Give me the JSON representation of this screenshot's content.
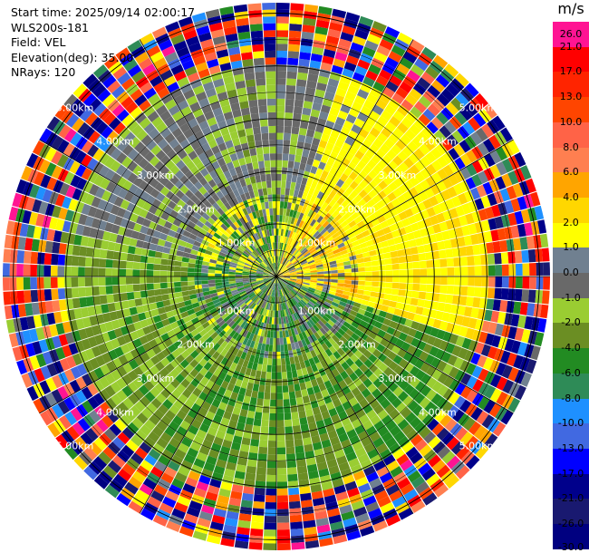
{
  "info": {
    "start_time": "Start time: 2025/09/14 02:00:17",
    "instrument": "WLS200s-181",
    "field": "Field: VEL",
    "elevation": "Elevation(deg): 35.00",
    "nrays": "NRays: 120"
  },
  "colorbar": {
    "unit": "m/s",
    "levels": [
      {
        "label": "26.0",
        "color": "#ff1493"
      },
      {
        "label": "21.0",
        "color": "#ff0000"
      },
      {
        "label": "17.0",
        "color": "#ff2400"
      },
      {
        "label": "13.0",
        "color": "#ff4500"
      },
      {
        "label": "10.0",
        "color": "#ff6347"
      },
      {
        "label": "8.0",
        "color": "#ff7f50"
      },
      {
        "label": "6.0",
        "color": "#ffa500"
      },
      {
        "label": "4.0",
        "color": "#ffd700"
      },
      {
        "label": "2.0",
        "color": "#ffff00"
      },
      {
        "label": "1.0",
        "color": "#708090"
      },
      {
        "label": "0.0",
        "color": "#696969"
      },
      {
        "label": "-1.0",
        "color": "#9acd32"
      },
      {
        "label": "-2.0",
        "color": "#6b8e23"
      },
      {
        "label": "-4.0",
        "color": "#228b22"
      },
      {
        "label": "-6.0",
        "color": "#2e8b57"
      },
      {
        "label": "-8.0",
        "color": "#1e90ff"
      },
      {
        "label": "-10.0",
        "color": "#4169e1"
      },
      {
        "label": "-13.0",
        "color": "#0000ff"
      },
      {
        "label": "-17.0",
        "color": "#00008b"
      },
      {
        "label": "-21.0",
        "color": "#191970"
      },
      {
        "label": "-26.0",
        "color": "#000080"
      },
      {
        "label": "-30.0",
        "color": null
      }
    ]
  },
  "chart_data": {
    "type": "heatmap",
    "projection": "polar PPI",
    "field": "VEL",
    "units": "m/s",
    "nrays": 120,
    "range_rings_km": [
      1.0,
      2.0,
      3.0,
      4.0,
      5.0
    ],
    "range_ring_labels": [
      "1.00km",
      "2.00km",
      "3.00km",
      "4.00km",
      "5.00km"
    ],
    "max_range_km": 5.2,
    "vmin": -30.0,
    "vmax": 26.0,
    "gate_length_km": 0.13,
    "note_values": "sector-dominant velocities (approximate): NW/N -1 to 2 m/s, NE/E 2 to 4 m/s, S/SW -2 to -1 m/s, outer gates noisy"
  }
}
